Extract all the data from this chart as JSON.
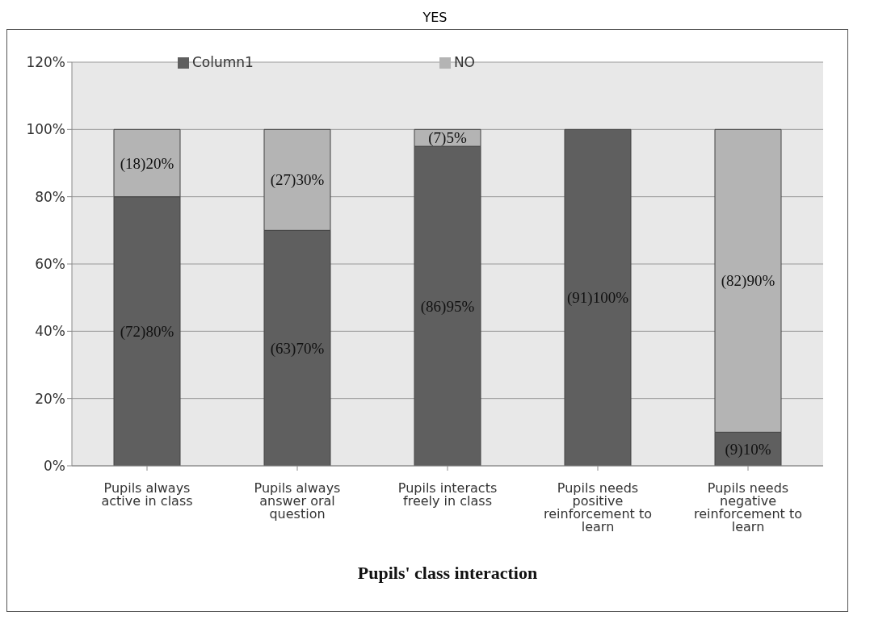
{
  "chart_data": {
    "type": "bar",
    "title": "YES",
    "xlabel": "Pupils' class interaction",
    "stacked": true,
    "legend": "top",
    "grid": "y",
    "categories": [
      "Pupils always active in class",
      "Pupils always answer oral question",
      "Pupils interacts freely in class",
      "Pupils needs positive reinforcement to learn",
      "Pupils needs negative reinforcement to learn"
    ],
    "ylim": [
      0,
      120
    ],
    "yticks": [
      {
        "value": 0,
        "label": "0%"
      },
      {
        "value": 20,
        "label": "20%"
      },
      {
        "value": 40,
        "label": "40%"
      },
      {
        "value": 60,
        "label": "60%"
      },
      {
        "value": 80,
        "label": "80%"
      },
      {
        "value": 100,
        "label": "100%"
      },
      {
        "value": 120,
        "label": "120%"
      }
    ],
    "series": [
      {
        "name": "Column1",
        "color": "#5f5f5f",
        "values": [
          80,
          70,
          95,
          100,
          10
        ],
        "value_labels": [
          "(72)80%",
          "(63)70%",
          "(86)95%",
          "(91)100%",
          "(9)10%"
        ]
      },
      {
        "name": "NO",
        "color": "#b4b4b4",
        "values": [
          20,
          30,
          5,
          0,
          90
        ],
        "value_labels": [
          "(18)20%",
          "(27)30%",
          "(7)5%",
          null,
          "(82)90%"
        ]
      }
    ]
  }
}
